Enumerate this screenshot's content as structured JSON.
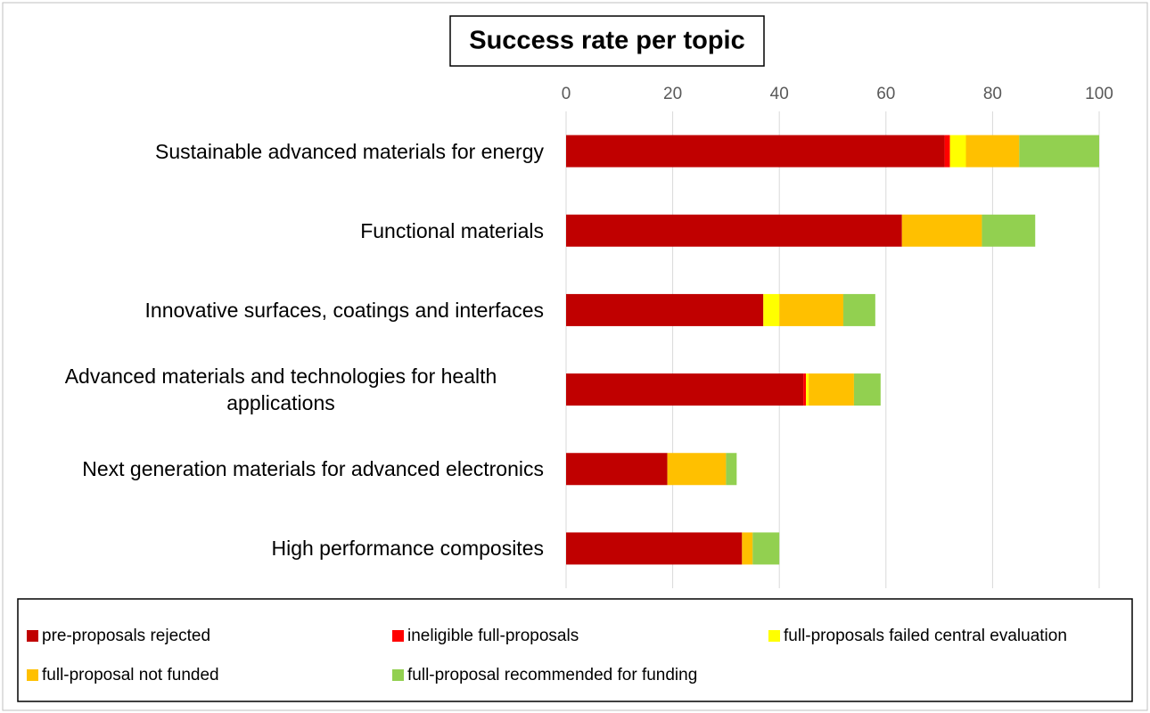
{
  "chart_data": {
    "type": "stacked_barh",
    "title": "Success rate per topic",
    "categories": [
      "Sustainable advanced materials for energy",
      "Functional materials",
      "Innovative surfaces, coatings and interfaces",
      "Advanced materials and technologies for health applications",
      "Next generation materials for advanced electronics",
      "High performance composites"
    ],
    "series": [
      {
        "name": "pre-proposals rejected",
        "color": "#c00000",
        "values": [
          71,
          63,
          37,
          44.5,
          19,
          33
        ]
      },
      {
        "name": "ineligible full-proposals",
        "color": "#ff0000",
        "values": [
          1,
          0,
          0,
          0.5,
          0,
          0
        ]
      },
      {
        "name": "full-proposals failed central evaluation",
        "color": "#ffff00",
        "values": [
          3,
          0,
          3,
          0.5,
          0,
          0
        ]
      },
      {
        "name": "full-proposal not funded",
        "color": "#ffc000",
        "values": [
          10,
          15,
          12,
          8.5,
          11,
          2
        ]
      },
      {
        "name": "full-proposal recommended for funding",
        "color": "#92d050",
        "values": [
          15,
          10,
          6,
          5,
          2,
          5
        ]
      }
    ],
    "xlim": [
      0,
      100
    ],
    "xticks": [
      0,
      20,
      40,
      60,
      80,
      100
    ],
    "grid": true,
    "legend": "bottom"
  }
}
